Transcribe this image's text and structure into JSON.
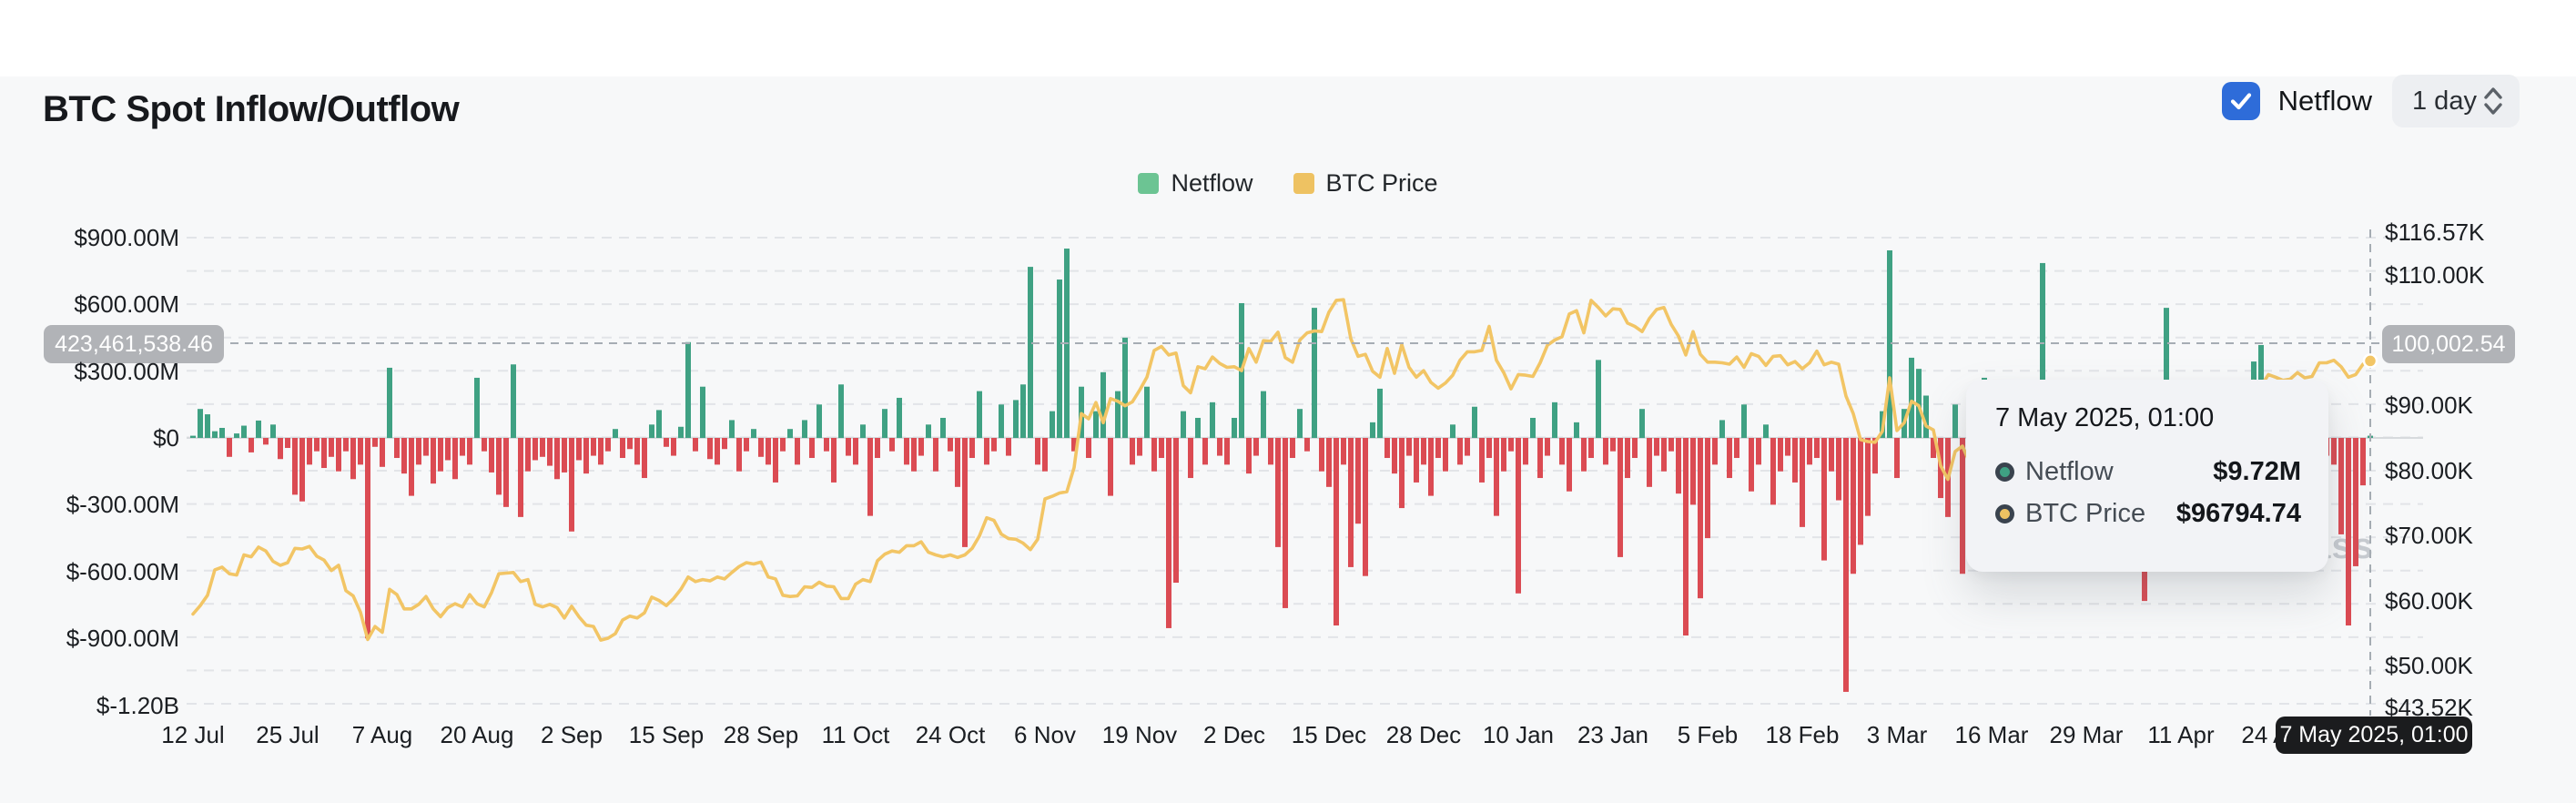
{
  "header": {
    "title": "BTC Spot Inflow/Outflow"
  },
  "controls": {
    "netflow_checkbox": {
      "label": "Netflow",
      "checked": true,
      "accent_color": "#2e6cd9"
    },
    "interval_select": {
      "value": "1 day"
    }
  },
  "legend": [
    {
      "label": "Netflow",
      "color": "#6cc493"
    },
    {
      "label": "BTC Price",
      "color": "#eec262"
    }
  ],
  "watermark": "coinglass",
  "crosshair": {
    "left_axis_value": "423,461,538.46",
    "right_axis_value": "100,002.54",
    "date_label": "7 May 2025, 01:00"
  },
  "tooltip": {
    "title": "7 May 2025, 01:00",
    "rows": [
      {
        "label": "Netflow",
        "value": "$9.72M",
        "marker_color": "#3fa183"
      },
      {
        "label": "BTC Price",
        "value": "$96794.74",
        "marker_color": "#eec262"
      }
    ]
  },
  "y_axis_left": [
    {
      "text": "$900.00M",
      "value": 900
    },
    {
      "text": "$600.00M",
      "value": 600
    },
    {
      "text": "$300.00M",
      "value": 300
    },
    {
      "text": "$0",
      "value": 0
    },
    {
      "text": "$-300.00M",
      "value": -300
    },
    {
      "text": "$-600.00M",
      "value": -600
    },
    {
      "text": "$-900.00M",
      "value": -900
    },
    {
      "text": "$-1.20B",
      "value": -1200
    }
  ],
  "y_axis_right": [
    {
      "text": "$116.57K",
      "value": 116.57
    },
    {
      "text": "$110.00K",
      "value": 110
    },
    {
      "text": "$90.00K",
      "value": 90
    },
    {
      "text": "$80.00K",
      "value": 80
    },
    {
      "text": "$70.00K",
      "value": 70
    },
    {
      "text": "$60.00K",
      "value": 60
    },
    {
      "text": "$50.00K",
      "value": 50
    },
    {
      "text": "$43.52K",
      "value": 43.52
    }
  ],
  "chart_data": {
    "type": "bar+line",
    "title": "BTC Spot Inflow/Outflow",
    "interval": "1 day",
    "x_start": "12 Jul 2024",
    "x_end": "7 May 2025",
    "x_tick_labels": [
      "12 Jul",
      "25 Jul",
      "7 Aug",
      "20 Aug",
      "2 Sep",
      "15 Sep",
      "28 Sep",
      "11 Oct",
      "24 Oct",
      "6 Nov",
      "19 Nov",
      "2 Dec",
      "15 Dec",
      "28 Dec",
      "10 Jan",
      "23 Jan",
      "5 Feb",
      "18 Feb",
      "3 Mar",
      "16 Mar",
      "29 Mar",
      "11 Apr",
      "24 Apr"
    ],
    "x_tick_day_index": [
      0,
      13,
      26,
      39,
      52,
      65,
      78,
      91,
      104,
      117,
      130,
      143,
      156,
      169,
      182,
      195,
      208,
      221,
      234,
      247,
      260,
      273,
      286
    ],
    "y_left_axis": {
      "unit": "USD millions",
      "min": -1200,
      "max": 900,
      "grid_step": 150
    },
    "y_right_axis": {
      "unit": "USD thousands",
      "min": 43.52,
      "max": 116.57
    },
    "legend_position": "top-center",
    "grid": "horizontal-dashed",
    "hover_point": {
      "date": "7 May 2025, 01:00",
      "netflow": "$9.72M",
      "btc_price": "$96794.74",
      "day_index": 299
    },
    "series": [
      {
        "name": "Netflow",
        "type": "bar",
        "axis": "left",
        "unit": "USD millions",
        "color_positive": "#3fa183",
        "color_negative": "#db4b53",
        "values": [
          8,
          130,
          106,
          30,
          45,
          -85,
          20,
          55,
          -65,
          78,
          -30,
          60,
          -95,
          -45,
          -255,
          -285,
          -120,
          -60,
          -135,
          -85,
          -150,
          -60,
          -185,
          -120,
          -900,
          -40,
          -130,
          315,
          -90,
          -160,
          -260,
          -120,
          -80,
          -205,
          -150,
          -100,
          -185,
          -80,
          -120,
          270,
          -60,
          -155,
          -255,
          -310,
          330,
          -355,
          -150,
          -100,
          -85,
          -125,
          -185,
          -155,
          -420,
          -100,
          -160,
          -80,
          -120,
          -60,
          40,
          -90,
          -50,
          -120,
          -180,
          60,
          125,
          -40,
          -80,
          50,
          430,
          -60,
          230,
          -95,
          -120,
          -50,
          80,
          -150,
          -60,
          40,
          -85,
          -120,
          -200,
          -60,
          40,
          -120,
          80,
          -90,
          150,
          -60,
          -200,
          240,
          -80,
          -120,
          60,
          -350,
          -90,
          130,
          -60,
          180,
          -120,
          -150,
          -80,
          60,
          -150,
          90,
          -60,
          -220,
          -490,
          -90,
          210,
          -120,
          -60,
          150,
          -80,
          170,
          240,
          768,
          -120,
          -150,
          120,
          711,
          850,
          -60,
          230,
          -90,
          120,
          295,
          -260,
          210,
          450,
          -120,
          -80,
          230,
          -150,
          -90,
          -854,
          -650,
          120,
          -180,
          90,
          -120,
          160,
          -80,
          -120,
          90,
          605,
          -160,
          -80,
          210,
          -120,
          -490,
          -764,
          -90,
          130,
          -60,
          584,
          -150,
          -220,
          -842,
          -120,
          -580,
          -385,
          -620,
          70,
          221,
          -90,
          -160,
          -315,
          -80,
          -200,
          -120,
          -260,
          -90,
          -150,
          60,
          -120,
          -80,
          140,
          -200,
          -90,
          -350,
          -150,
          -60,
          -698,
          -120,
          90,
          -180,
          -80,
          160,
          -120,
          -240,
          70,
          -150,
          -90,
          350,
          -120,
          -60,
          -535,
          -180,
          -90,
          130,
          -220,
          -80,
          -150,
          -60,
          -250,
          -887,
          -300,
          -720,
          -450,
          -120,
          80,
          -180,
          -90,
          150,
          -240,
          -120,
          60,
          -300,
          -150,
          -80,
          -200,
          -400,
          -120,
          -90,
          -550,
          -150,
          -280,
          -1140,
          -610,
          -480,
          -350,
          -160,
          120,
          842,
          -180,
          130,
          360,
          310,
          190,
          -90,
          -270,
          -355,
          150,
          -610,
          -200,
          90,
          270,
          -320,
          230,
          -150,
          100,
          -90,
          60,
          -240,
          785,
          -120,
          -80,
          150,
          -60,
          -180,
          -90,
          -130,
          -70,
          -120,
          -80,
          150,
          -200,
          -90,
          -732,
          -150,
          -60,
          584,
          130,
          -90,
          -180,
          80,
          -120,
          -60,
          90,
          -150,
          -80,
          60,
          -120,
          343,
          417,
          -90,
          -150,
          80,
          -60,
          -120,
          90,
          -80,
          -150,
          -80,
          -120,
          -433,
          -842,
          -576,
          -213,
          9.72
        ]
      },
      {
        "name": "BTC Price",
        "type": "line",
        "axis": "right",
        "unit": "USD thousands",
        "color": "#f2c565",
        "values": [
          57.9,
          59.2,
          60.8,
          64.7,
          65.1,
          64.1,
          63.9,
          67.0,
          66.7,
          68.2,
          67.6,
          66.0,
          65.4,
          65.8,
          68.0,
          67.9,
          68.3,
          66.8,
          66.2,
          64.6,
          65.4,
          61.5,
          60.7,
          58.2,
          54.0,
          56.0,
          55.1,
          61.7,
          60.9,
          58.7,
          58.7,
          59.4,
          60.6,
          58.7,
          57.5,
          58.9,
          59.5,
          59.0,
          60.9,
          59.5,
          59.0,
          61.2,
          64.1,
          64.2,
          64.3,
          62.9,
          63.2,
          59.4,
          59.0,
          59.4,
          58.9,
          57.3,
          59.1,
          57.5,
          56.2,
          56.0,
          53.9,
          54.2,
          54.9,
          57.0,
          57.6,
          57.3,
          58.1,
          60.5,
          60.0,
          59.2,
          60.3,
          61.7,
          63.6,
          62.9,
          63.2,
          63.0,
          63.6,
          63.3,
          64.3,
          65.2,
          65.8,
          65.6,
          65.9,
          63.6,
          63.3,
          60.8,
          60.6,
          60.7,
          62.1,
          62.0,
          62.8,
          62.2,
          62.1,
          60.3,
          60.3,
          62.5,
          63.2,
          62.9,
          66.1,
          67.1,
          67.6,
          67.4,
          68.4,
          68.4,
          69.0,
          67.4,
          67.0,
          66.7,
          67.0,
          66.6,
          67.0,
          68.0,
          69.9,
          72.7,
          72.3,
          70.2,
          69.5,
          69.4,
          68.8,
          67.8,
          69.4,
          75.6,
          76.0,
          76.5,
          76.7,
          80.4,
          88.7,
          87.9,
          90.4,
          87.3,
          91.0,
          90.6,
          89.9,
          90.5,
          92.3,
          94.3,
          98.4,
          99.0,
          97.7,
          98.0,
          93.0,
          91.9,
          95.9,
          95.6,
          97.4,
          96.4,
          95.8,
          95.9,
          95.3,
          98.7,
          96.6,
          99.9,
          99.8,
          101.2,
          97.3,
          96.6,
          100.0,
          101.1,
          101.4,
          101.3,
          104.3,
          106.1,
          106.2,
          100.2,
          97.5,
          97.8,
          95.2,
          94.3,
          98.7,
          94.9,
          99.3,
          95.8,
          94.3,
          95.3,
          93.5,
          92.6,
          93.4,
          94.6,
          96.9,
          98.2,
          98.2,
          98.4,
          102.1,
          96.9,
          95.0,
          92.5,
          94.7,
          94.6,
          94.4,
          96.5,
          99.2,
          100.0,
          100.5,
          104.0,
          104.5,
          101.1,
          106.1,
          105.0,
          103.7,
          104.8,
          104.7,
          102.6,
          102.1,
          101.3,
          103.3,
          104.7,
          105.0,
          102.4,
          100.6,
          97.7,
          101.3,
          97.8,
          96.6,
          96.6,
          96.5,
          96.3,
          97.4,
          95.8,
          97.9,
          97.5,
          96.1,
          97.5,
          97.6,
          96.2,
          96.7,
          95.6,
          96.5,
          98.3,
          96.2,
          96.6,
          96.3,
          91.4,
          88.7,
          84.7,
          84.4,
          84.3,
          86.0,
          94.2,
          86.1,
          87.3,
          90.6,
          89.9,
          86.8,
          86.2,
          80.7,
          78.6,
          82.9,
          83.7,
          81.1,
          83.9,
          84.3,
          82.6,
          84.0,
          82.7,
          86.9,
          84.2,
          84.4,
          86.1,
          85.8,
          87.5,
          87.3,
          86.9,
          87.2,
          84.4,
          82.6,
          82.4,
          82.5,
          85.2,
          82.5,
          83.2,
          83.8,
          78.2,
          79.2,
          76.3,
          82.6,
          79.6,
          83.4,
          85.3,
          83.7,
          84.5,
          83.7,
          84.0,
          84.4,
          85.1,
          85.2,
          87.5,
          93.4,
          93.7,
          92.9,
          94.7,
          94.3,
          93.8,
          94.0,
          95.0,
          94.2,
          94.4,
          96.5,
          96.5,
          96.9,
          95.9,
          94.3,
          94.7,
          96.3,
          96.8
        ]
      }
    ]
  }
}
